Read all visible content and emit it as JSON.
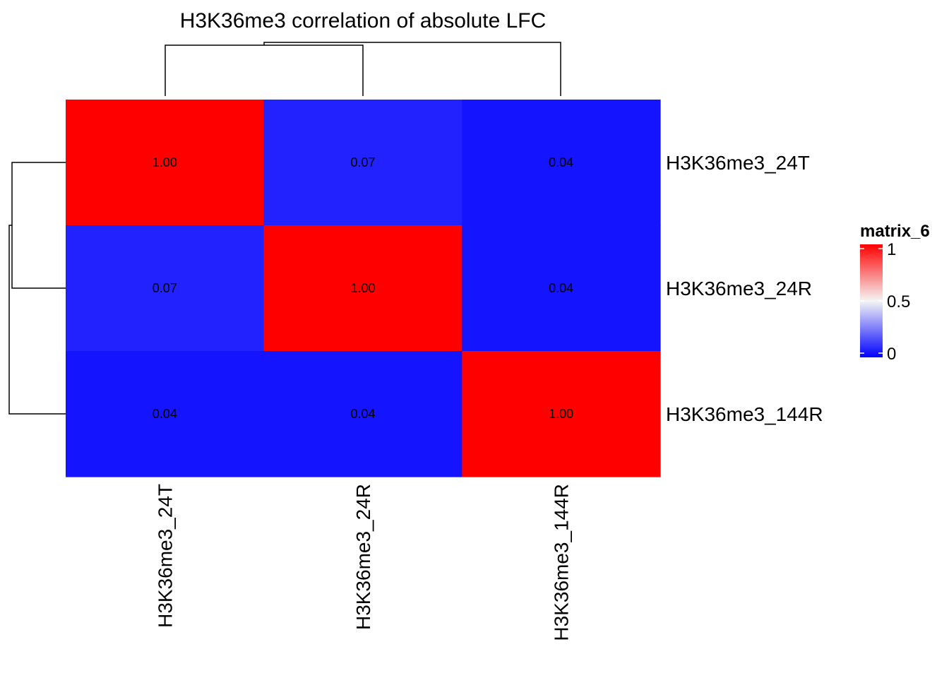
{
  "chart_data": {
    "type": "heatmap",
    "title": "H3K36me3 correlation of absolute LFC",
    "rows": [
      "H3K36me3_24T",
      "H3K36me3_24R",
      "H3K36me3_144R"
    ],
    "columns": [
      "H3K36me3_24T",
      "H3K36me3_24R",
      "H3K36me3_144R"
    ],
    "values": [
      [
        1.0,
        0.07,
        0.04
      ],
      [
        0.07,
        1.0,
        0.04
      ],
      [
        0.04,
        0.04,
        1.0
      ]
    ],
    "cell_labels": [
      [
        "1.00",
        "0.07",
        "0.04"
      ],
      [
        "0.07",
        "1.00",
        "0.04"
      ],
      [
        "0.04",
        "0.04",
        "1.00"
      ]
    ],
    "color_scale": {
      "min": 0,
      "mid": 0.5,
      "max": 1,
      "min_color": "#0000ff",
      "mid_color": "#f5f5f5",
      "max_color": "#ff0000"
    },
    "legend": {
      "title": "matrix_6",
      "ticks": [
        "1",
        "0.5",
        "0"
      ],
      "placement": "right"
    },
    "row_dendrogram": "left",
    "column_dendrogram": "top"
  }
}
